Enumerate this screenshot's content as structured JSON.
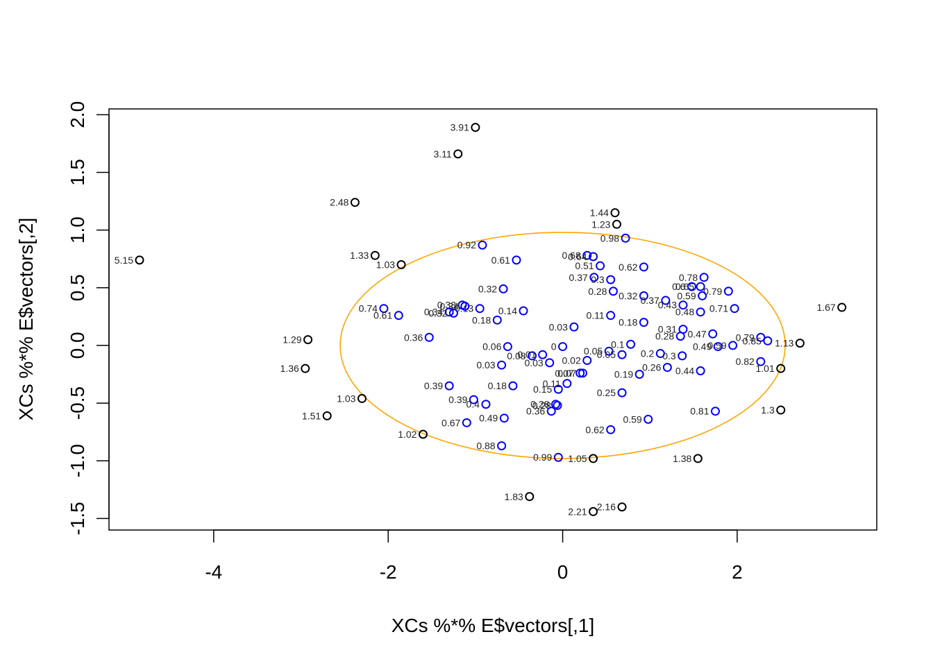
{
  "chart_data": {
    "type": "scatter",
    "xlabel": "XCs %*% E$vectors[,1]",
    "ylabel": "XCs %*% E$vectors[,2]",
    "xlim": [
      -5.2,
      3.6
    ],
    "ylim": [
      -1.6,
      2.05
    ],
    "x_ticks": [
      -4,
      -2,
      0,
      2
    ],
    "y_ticks": [
      -1.5,
      -1.0,
      -0.5,
      0.0,
      0.5,
      1.0,
      1.5,
      2.0
    ],
    "x_tick_labels": [
      "-4",
      "-2",
      "0",
      "2"
    ],
    "y_tick_labels": [
      "-1.5",
      "-1.0",
      "-0.5",
      "0.0",
      "0.5",
      "1.0",
      "1.5",
      "2.0"
    ],
    "ellipse": {
      "center": [
        0,
        0
      ],
      "rx": 2.55,
      "ry": 0.98,
      "color": "#FFA500"
    },
    "grid": false,
    "legend": "none",
    "series": [
      {
        "color": "#000000",
        "points": [
          {
            "x": -4.85,
            "y": 0.74,
            "label": "5.15"
          },
          {
            "x": -1.0,
            "y": 1.89,
            "label": "3.91"
          },
          {
            "x": -1.2,
            "y": 1.66,
            "label": "3.11"
          },
          {
            "x": -2.38,
            "y": 1.24,
            "label": "2.48"
          },
          {
            "x": 0.6,
            "y": 1.15,
            "label": "1.44"
          },
          {
            "x": 0.62,
            "y": 1.05,
            "label": "1.23"
          },
          {
            "x": -2.15,
            "y": 0.78,
            "label": "1.33"
          },
          {
            "x": -1.85,
            "y": 0.7,
            "label": "1.03"
          },
          {
            "x": 3.2,
            "y": 0.33,
            "label": "1.67"
          },
          {
            "x": -2.92,
            "y": 0.05,
            "label": "1.29"
          },
          {
            "x": 2.72,
            "y": 0.02,
            "label": "1.13"
          },
          {
            "x": -2.95,
            "y": -0.2,
            "label": "1.36"
          },
          {
            "x": 2.5,
            "y": -0.2,
            "label": "1.01"
          },
          {
            "x": -2.3,
            "y": -0.46,
            "label": "1.03"
          },
          {
            "x": 2.5,
            "y": -0.56,
            "label": "1.3"
          },
          {
            "x": -2.7,
            "y": -0.61,
            "label": "1.51"
          },
          {
            "x": -1.6,
            "y": -0.77,
            "label": "1.02"
          },
          {
            "x": 0.35,
            "y": -0.98,
            "label": "1.05"
          },
          {
            "x": 1.55,
            "y": -0.98,
            "label": "1.38"
          },
          {
            "x": -0.38,
            "y": -1.31,
            "label": "1.83"
          },
          {
            "x": 0.68,
            "y": -1.4,
            "label": "2.16"
          },
          {
            "x": 0.35,
            "y": -1.44,
            "label": "2.21"
          }
        ]
      },
      {
        "color": "#0000FF",
        "points": [
          {
            "x": 0.72,
            "y": 0.93,
            "label": "0.98"
          },
          {
            "x": -0.92,
            "y": 0.87,
            "label": "0.92"
          },
          {
            "x": 0.28,
            "y": 0.78,
            "label": "0.68"
          },
          {
            "x": 0.35,
            "y": 0.77,
            "label": "0.64"
          },
          {
            "x": -0.53,
            "y": 0.74,
            "label": "0.61"
          },
          {
            "x": 0.43,
            "y": 0.69,
            "label": "0.51"
          },
          {
            "x": 0.93,
            "y": 0.68,
            "label": "0.62"
          },
          {
            "x": 1.62,
            "y": 0.59,
            "label": "0.78"
          },
          {
            "x": 0.36,
            "y": 0.59,
            "label": "0.37"
          },
          {
            "x": 0.55,
            "y": 0.57,
            "label": "0.3"
          },
          {
            "x": 1.48,
            "y": 0.51,
            "label": "0.6"
          },
          {
            "x": 1.58,
            "y": 0.51,
            "label": "0.65"
          },
          {
            "x": -0.68,
            "y": 0.49,
            "label": "0.32"
          },
          {
            "x": 0.58,
            "y": 0.47,
            "label": "0.28"
          },
          {
            "x": 1.9,
            "y": 0.47,
            "label": "0.79"
          },
          {
            "x": 0.93,
            "y": 0.43,
            "label": "0.32"
          },
          {
            "x": 1.6,
            "y": 0.43,
            "label": "0.59"
          },
          {
            "x": 1.18,
            "y": 0.39,
            "label": "0.37"
          },
          {
            "x": 1.38,
            "y": 0.35,
            "label": "0.43"
          },
          {
            "x": -1.15,
            "y": 0.35,
            "label": "0.38"
          },
          {
            "x": -1.12,
            "y": 0.34,
            "label": "0.34"
          },
          {
            "x": -0.95,
            "y": 0.32,
            "label": "0.13"
          },
          {
            "x": -2.05,
            "y": 0.32,
            "label": "0.74"
          },
          {
            "x": 1.97,
            "y": 0.32,
            "label": "0.71"
          },
          {
            "x": -1.3,
            "y": 0.29,
            "label": "0.34"
          },
          {
            "x": -1.25,
            "y": 0.28,
            "label": "0.32"
          },
          {
            "x": -0.45,
            "y": 0.3,
            "label": "0.14"
          },
          {
            "x": 1.58,
            "y": 0.29,
            "label": "0.48"
          },
          {
            "x": -1.88,
            "y": 0.26,
            "label": "0.61"
          },
          {
            "x": 0.55,
            "y": 0.26,
            "label": "0.11"
          },
          {
            "x": -0.75,
            "y": 0.22,
            "label": "0.18"
          },
          {
            "x": 0.93,
            "y": 0.2,
            "label": "0.18"
          },
          {
            "x": 0.13,
            "y": 0.16,
            "label": "0.03"
          },
          {
            "x": 1.38,
            "y": 0.14,
            "label": "0.31"
          },
          {
            "x": 1.72,
            "y": 0.1,
            "label": "0.47"
          },
          {
            "x": 1.35,
            "y": 0.08,
            "label": "0.28"
          },
          {
            "x": 2.27,
            "y": 0.07,
            "label": "0.79"
          },
          {
            "x": 2.35,
            "y": 0.04,
            "label": "0.85"
          },
          {
            "x": -1.53,
            "y": 0.07,
            "label": "0.36"
          },
          {
            "x": 1.95,
            "y": 0.0,
            "label": "0.59"
          },
          {
            "x": 1.78,
            "y": -0.01,
            "label": "0.49"
          },
          {
            "x": 0.78,
            "y": 0.01,
            "label": "0.1"
          },
          {
            "x": -0.63,
            "y": -0.01,
            "label": "0.06"
          },
          {
            "x": 0.0,
            "y": -0.01,
            "label": "0"
          },
          {
            "x": 0.53,
            "y": -0.05,
            "label": "0.05"
          },
          {
            "x": 1.12,
            "y": -0.07,
            "label": "0.2"
          },
          {
            "x": 0.68,
            "y": -0.08,
            "label": "0.05"
          },
          {
            "x": 1.37,
            "y": -0.09,
            "label": "0.3"
          },
          {
            "x": -0.35,
            "y": -0.09,
            "label": "0.08"
          },
          {
            "x": -0.23,
            "y": -0.08,
            "label": "0.01"
          },
          {
            "x": 0.28,
            "y": -0.13,
            "label": "0.02"
          },
          {
            "x": -0.15,
            "y": -0.15,
            "label": "0.03"
          },
          {
            "x": -0.7,
            "y": -0.17,
            "label": "0.03"
          },
          {
            "x": 2.27,
            "y": -0.14,
            "label": "0.82"
          },
          {
            "x": 1.2,
            "y": -0.19,
            "label": "0.26"
          },
          {
            "x": 1.58,
            "y": -0.22,
            "label": "0.44"
          },
          {
            "x": 0.2,
            "y": -0.24,
            "label": "0.07"
          },
          {
            "x": 0.23,
            "y": -0.24,
            "label": "0.07"
          },
          {
            "x": 0.88,
            "y": -0.25,
            "label": "0.19"
          },
          {
            "x": 0.05,
            "y": -0.33,
            "label": "0.11"
          },
          {
            "x": -0.57,
            "y": -0.35,
            "label": "0.18"
          },
          {
            "x": -1.3,
            "y": -0.35,
            "label": "0.39"
          },
          {
            "x": -0.05,
            "y": -0.38,
            "label": "0.15"
          },
          {
            "x": 0.68,
            "y": -0.41,
            "label": "0.25"
          },
          {
            "x": -1.02,
            "y": -0.47,
            "label": "0.39"
          },
          {
            "x": -0.88,
            "y": -0.51,
            "label": "0.4"
          },
          {
            "x": -0.08,
            "y": -0.51,
            "label": "0.28"
          },
          {
            "x": -0.06,
            "y": -0.52,
            "label": "0.28"
          },
          {
            "x": -0.13,
            "y": -0.57,
            "label": "0.36"
          },
          {
            "x": 1.75,
            "y": -0.57,
            "label": "0.81"
          },
          {
            "x": -0.67,
            "y": -0.63,
            "label": "0.49"
          },
          {
            "x": 0.98,
            "y": -0.64,
            "label": "0.59"
          },
          {
            "x": -1.1,
            "y": -0.67,
            "label": "0.67"
          },
          {
            "x": 0.55,
            "y": -0.73,
            "label": "0.62"
          },
          {
            "x": -0.7,
            "y": -0.87,
            "label": "0.88"
          },
          {
            "x": -0.05,
            "y": -0.97,
            "label": "0.99"
          }
        ]
      }
    ]
  }
}
